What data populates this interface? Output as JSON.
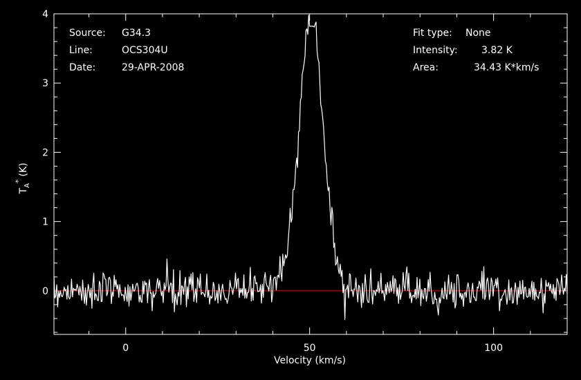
{
  "chart_data": {
    "type": "line",
    "xlabel": "Velocity (km/s)",
    "ylabel": "T_A^* (K)",
    "ylabel_main": "T",
    "ylabel_sub": "A",
    "ylabel_sup": "*",
    "ylabel_unit": "(K)",
    "xlim": [
      -19.5,
      120
    ],
    "ylim": [
      -0.63,
      4.0
    ],
    "xticks": [
      0,
      50,
      100
    ],
    "xtick_labels": [
      "0",
      "50",
      "100"
    ],
    "yticks": [
      0,
      1,
      2,
      3,
      4
    ],
    "ytick_labels": [
      "0",
      "1",
      "2",
      "3",
      "4"
    ],
    "baseline": 0,
    "colors": {
      "background": "#000000",
      "spectrum": "#ffffff",
      "baseline": "#ff0000",
      "axes": "#ffffff"
    },
    "peak_velocity": 50.5,
    "peak_intensity": 3.82,
    "line_fwhm": 7.6,
    "noise_rms": 0.13,
    "spectrum_channels": 555,
    "grid": false
  },
  "header": {
    "source_label": "Source:",
    "source_value": "G34.3",
    "line_label": "Line:",
    "line_value": "OCS304U",
    "date_label": "Date:",
    "date_value": "29-APR-2008",
    "fit_label": "Fit type:",
    "fit_value": "None",
    "intensity_label": "Intensity:",
    "intensity_value": "3.82 K",
    "area_label": "Area:",
    "area_value": "34.43 K*km/s"
  }
}
